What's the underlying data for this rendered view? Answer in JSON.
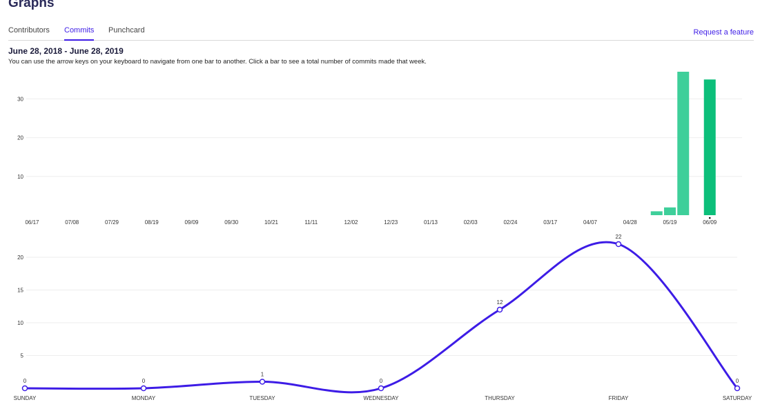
{
  "page": {
    "title": "Graphs"
  },
  "tabs": [
    {
      "label": "Contributors",
      "active": false
    },
    {
      "label": "Commits",
      "active": true
    },
    {
      "label": "Punchcard",
      "active": false
    }
  ],
  "request_feature": "Request a feature",
  "range_title": "June 28, 2018 - June 28, 2019",
  "hint": "You can use the arrow keys on your keyboard to navigate from one bar to another. Click a bar to see a total number of commits made that week.",
  "colors": {
    "accent": "#3d1ce6",
    "bar": "#3ecf9a",
    "bar_selected": "#0cbf7a"
  },
  "chart_data": [
    {
      "type": "bar",
      "x_tick_labels": [
        "06/17",
        "07/08",
        "07/29",
        "08/19",
        "09/09",
        "09/30",
        "10/21",
        "11/11",
        "12/02",
        "12/23",
        "01/13",
        "02/03",
        "02/24",
        "03/17",
        "04/07",
        "04/28",
        "05/19",
        "06/09"
      ],
      "bars": [
        {
          "index": 47,
          "value": 1,
          "selected": false
        },
        {
          "index": 48,
          "value": 2,
          "selected": false
        },
        {
          "index": 49,
          "value": 37,
          "selected": false
        },
        {
          "index": 50,
          "value": 0,
          "selected": false
        },
        {
          "index": 51,
          "value": 35,
          "selected": true
        }
      ],
      "yticks": [
        10,
        20,
        30
      ],
      "ylim": [
        0,
        37
      ],
      "grid": true
    },
    {
      "type": "line",
      "categories": [
        "SUNDAY",
        "MONDAY",
        "TUESDAY",
        "WEDNESDAY",
        "THURSDAY",
        "FRIDAY",
        "SATURDAY"
      ],
      "values": [
        0,
        0,
        1,
        0,
        12,
        22,
        0
      ],
      "yticks": [
        5,
        10,
        15,
        20
      ],
      "ylim": [
        0,
        22
      ],
      "grid": true
    }
  ]
}
